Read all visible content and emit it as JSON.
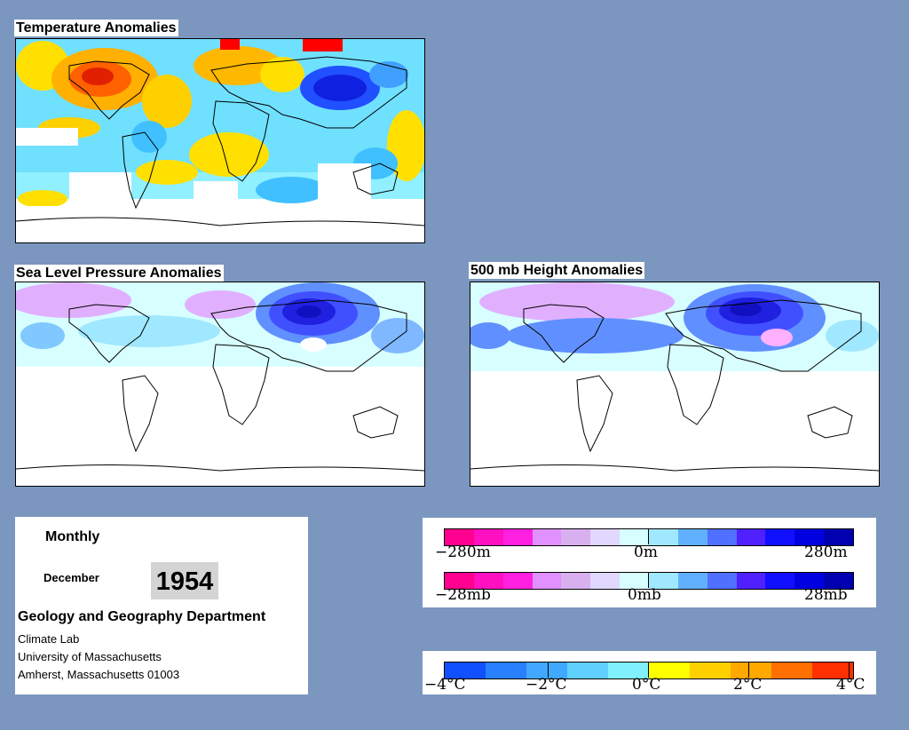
{
  "maps": {
    "temperature": {
      "title": "Temperature Anomalies"
    },
    "pressure": {
      "title": "Sea Level Pressure Anomalies"
    },
    "height": {
      "title": "500 mb Height Anomalies"
    }
  },
  "info": {
    "frequency": "Monthly",
    "month": "December",
    "year": "1954",
    "department": "Geology and Geography Department",
    "lab": "Climate Lab",
    "university": "University of Massachusetts",
    "address": "Amherst, Massachusetts 01003"
  },
  "legends": {
    "height": {
      "min_label": "−280m",
      "mid_label": "0m",
      "max_label": "280m"
    },
    "pressure": {
      "min_label": "−28mb",
      "mid_label": "0mb",
      "max_label": "28mb"
    },
    "temperature": {
      "labels": [
        "−4°C",
        "−2°C",
        "0°C",
        "2°C",
        "4°C"
      ]
    }
  },
  "colors": {
    "background": "#7b97bf",
    "anomaly_scale": [
      "#ff0090",
      "#ff10c0",
      "#ff20e0",
      "#e090ff",
      "#d8b0f0",
      "#e0d8ff",
      "#d8ffff",
      "#a0e8ff",
      "#60b0ff",
      "#5070ff",
      "#5020ff",
      "#1010ff",
      "#0000e0",
      "#0000b0"
    ],
    "temperature_scale": [
      "#1050ff",
      "#2880ff",
      "#40a8ff",
      "#60d0ff",
      "#80f0ff",
      "#ffff00",
      "#ffd000",
      "#ffa800",
      "#ff7000",
      "#ff3000"
    ]
  }
}
